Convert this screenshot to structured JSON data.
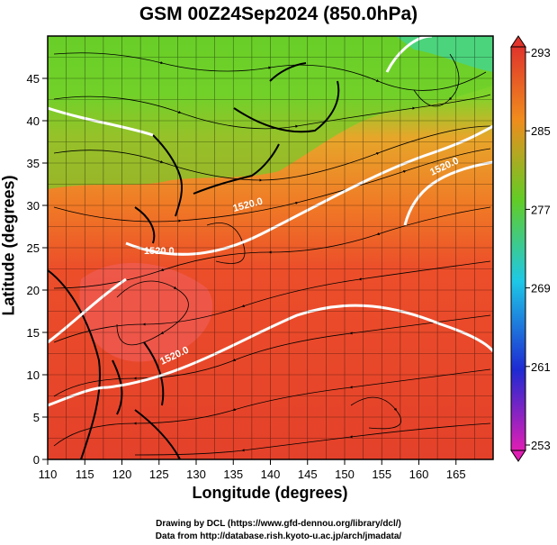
{
  "title": "GSM 00Z24Sep2024 (850.0hPa)",
  "x_axis": {
    "label": "Longitude (degrees)",
    "range": [
      110,
      170
    ],
    "ticks": [
      "110",
      "115",
      "120",
      "125",
      "130",
      "135",
      "140",
      "145",
      "150",
      "155",
      "160",
      "165"
    ],
    "tick_values": [
      110,
      115,
      120,
      125,
      130,
      135,
      140,
      145,
      150,
      155,
      160,
      165
    ]
  },
  "y_axis": {
    "label": "Latitude  (degrees)",
    "range": [
      0,
      50
    ],
    "ticks": [
      "0",
      "5",
      "10",
      "15",
      "20",
      "25",
      "30",
      "35",
      "40",
      "45"
    ],
    "tick_values": [
      0,
      5,
      10,
      15,
      20,
      25,
      30,
      35,
      40,
      45
    ]
  },
  "colorbar": {
    "labels": [
      "293",
      "285",
      "277",
      "269",
      "261",
      "253"
    ],
    "values": [
      293,
      285,
      277,
      269,
      261,
      253
    ],
    "colors": [
      "#e0342c",
      "#f08c1e",
      "#62cc26",
      "#1ec8e6",
      "#1e2ad2",
      "#e01eb4"
    ]
  },
  "contours": [
    {
      "label": "1520.0"
    },
    {
      "label": "1520.0"
    },
    {
      "label": "1520.0"
    },
    {
      "label": "1520.0"
    }
  ],
  "credits": [
    "Drawing by DCL (https://www.gfd-dennou.org/library/dcl/)",
    "Data from http://database.rish.kyoto-u.ac.jp/arch/jmadata/"
  ]
}
